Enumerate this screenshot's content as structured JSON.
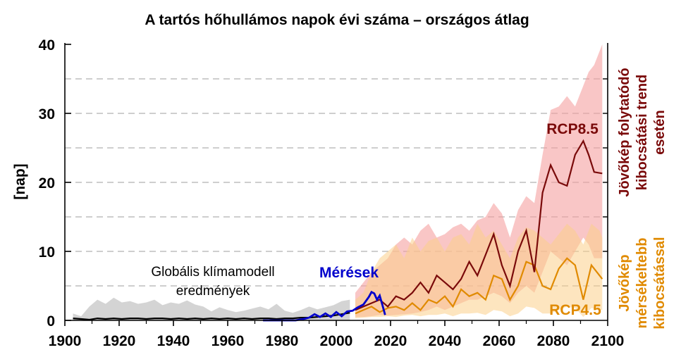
{
  "chart_data": {
    "type": "line",
    "title": "A tartós hőhullámos napok évi száma – országos átlag",
    "ylabel": "[nap]",
    "xlim": [
      1900,
      2100
    ],
    "ylim": [
      0,
      40
    ],
    "grid": "horizontal dashed",
    "xticks": [
      1900,
      1920,
      1940,
      1960,
      1980,
      2000,
      2020,
      2040,
      2060,
      2080,
      2100
    ],
    "yticks": [
      0,
      10,
      20,
      30,
      40
    ],
    "series": [
      {
        "name": "",
        "label_lines": [
          "Globális klímamodell",
          "eredmények"
        ],
        "color": "#000000",
        "band_color": "#cccccc",
        "x": [
          1903,
          1906,
          1909,
          1912,
          1915,
          1918,
          1921,
          1924,
          1927,
          1930,
          1933,
          1936,
          1939,
          1942,
          1945,
          1948,
          1951,
          1954,
          1957,
          1960,
          1963,
          1966,
          1969,
          1972,
          1975,
          1978,
          1981,
          1984,
          1987,
          1990,
          1993,
          1996,
          1999,
          2002,
          2005
        ],
        "values": [
          0.3,
          0.2,
          0.1,
          0.3,
          0.2,
          0.3,
          0.2,
          0.3,
          0.3,
          0.2,
          0.3,
          0.3,
          0.2,
          0.3,
          0.2,
          0.3,
          0.2,
          0.3,
          0.2,
          0.3,
          0.2,
          0.3,
          0.2,
          0.3,
          0.3,
          0.2,
          0.3,
          0.3,
          0.4,
          0.4,
          0.5,
          0.6,
          0.7,
          0.9,
          1.1
        ],
        "upper": [
          1.0,
          0.6,
          2.0,
          3.0,
          2.4,
          3.3,
          2.6,
          2.8,
          2.4,
          2.6,
          3.0,
          2.2,
          2.6,
          2.4,
          2.9,
          2.3,
          2.0,
          1.3,
          1.9,
          1.5,
          1.2,
          1.4,
          1.7,
          2.0,
          1.6,
          2.4,
          1.4,
          1.1,
          1.5,
          2.0,
          1.6,
          1.9,
          2.2,
          2.8,
          3.0
        ],
        "lower": [
          0,
          0,
          0,
          0,
          0,
          0,
          0,
          0,
          0,
          0,
          0,
          0,
          0,
          0,
          0,
          0,
          0,
          0,
          0,
          0,
          0,
          0,
          0,
          0,
          0,
          0,
          0,
          0,
          0,
          0,
          0,
          0,
          0,
          0,
          0
        ]
      },
      {
        "name": "Mérések",
        "color": "#0000cc",
        "x": [
          1973,
          1976,
          1979,
          1982,
          1985,
          1988,
          1990,
          1992,
          1994,
          1996,
          1998,
          2000,
          2002,
          2004,
          2006,
          2008,
          2010,
          2012,
          2013,
          2014,
          2015,
          2016,
          2017,
          2018
        ],
        "values": [
          0,
          0,
          0,
          0,
          0,
          0.2,
          0.4,
          0.9,
          0.5,
          1.0,
          0.5,
          1.2,
          0.6,
          1.3,
          1.4,
          1.9,
          2.3,
          3.4,
          4.1,
          3.9,
          3.0,
          3.6,
          2.2,
          0.8
        ]
      },
      {
        "name": "RCP8.5",
        "side_label_lines": [
          "Jövőkép folytatódó",
          "kibocsátási trend",
          "esetén"
        ],
        "color": "#7a0a0a",
        "band_color": "#f5a0a0",
        "x": [
          2007,
          2010,
          2013,
          2016,
          2019,
          2022,
          2025,
          2028,
          2031,
          2034,
          2037,
          2040,
          2043,
          2046,
          2049,
          2052,
          2055,
          2058,
          2061,
          2064,
          2067,
          2070,
          2073,
          2076,
          2079,
          2082,
          2085,
          2088,
          2091,
          2093,
          2095,
          2098
        ],
        "values": [
          1.5,
          2.0,
          2.5,
          3.0,
          2.0,
          3.5,
          3.0,
          4.0,
          5.5,
          4.0,
          6.5,
          5.5,
          4.5,
          6.0,
          8.5,
          6.5,
          9.5,
          12.5,
          8.0,
          5.0,
          10.0,
          13.0,
          7.0,
          18.5,
          22.5,
          20.0,
          19.5,
          24.0,
          26.0,
          24.0,
          21.5,
          21.3
        ],
        "upper": [
          4.0,
          5.5,
          7.0,
          8.0,
          9.0,
          11.0,
          12.0,
          11.0,
          13.0,
          14.0,
          12.0,
          12.5,
          13.5,
          14.0,
          13.0,
          14.5,
          15.0,
          17.0,
          15.5,
          12.0,
          16.0,
          18.0,
          17.0,
          24.0,
          30.5,
          31.0,
          32.5,
          31.0,
          34.0,
          36.0,
          37.0,
          40.0
        ],
        "lower": [
          0.5,
          0.5,
          0.6,
          0.8,
          0.7,
          0.8,
          0.9,
          1.0,
          1.2,
          1.5,
          2.0,
          1.5,
          2.0,
          2.5,
          3.0,
          3.0,
          3.5,
          4.0,
          3.5,
          2.5,
          4.0,
          5.0,
          4.0,
          7.0,
          10.0,
          9.0,
          8.0,
          10.0,
          12.0,
          11.0,
          9.0,
          9.0
        ]
      },
      {
        "name": "RCP4.5",
        "side_label_lines": [
          "Jövőkép",
          "mérsékeltebb",
          "kibocsátással"
        ],
        "color": "#e08a00",
        "band_color": "#fbcf8a",
        "x": [
          2007,
          2010,
          2013,
          2016,
          2019,
          2022,
          2025,
          2028,
          2031,
          2034,
          2037,
          2040,
          2043,
          2046,
          2049,
          2052,
          2055,
          2058,
          2061,
          2064,
          2067,
          2070,
          2073,
          2076,
          2079,
          2082,
          2085,
          2088,
          2091,
          2094,
          2097,
          2098
        ],
        "values": [
          1.0,
          1.5,
          2.0,
          1.2,
          1.8,
          2.0,
          1.5,
          2.5,
          1.5,
          3.0,
          2.5,
          3.5,
          2.0,
          4.5,
          3.5,
          4.0,
          3.0,
          6.5,
          6.0,
          3.0,
          5.0,
          8.5,
          8.0,
          5.0,
          4.5,
          7.5,
          9.0,
          8.0,
          3.0,
          8.0,
          6.5,
          6.0
        ],
        "upper": [
          3.0,
          4.0,
          7.0,
          9.0,
          10.0,
          11.0,
          9.0,
          12.0,
          10.0,
          11.5,
          12.0,
          10.0,
          12.0,
          12.5,
          11.0,
          14.0,
          12.0,
          13.0,
          11.0,
          9.0,
          12.0,
          13.5,
          13.0,
          12.0,
          11.0,
          12.5,
          14.0,
          13.0,
          11.0,
          14.0,
          13.0,
          12.0
        ],
        "lower": [
          0.3,
          0.4,
          0.5,
          0.5,
          0.6,
          0.5,
          0.7,
          0.8,
          0.6,
          0.8,
          0.8,
          1.0,
          0.6,
          1.0,
          1.0,
          1.1,
          0.8,
          1.5,
          1.3,
          0.6,
          1.0,
          2.0,
          1.8,
          1.0,
          1.0,
          1.5,
          2.0,
          1.8,
          0.5,
          1.8,
          1.5,
          1.5
        ]
      }
    ]
  }
}
